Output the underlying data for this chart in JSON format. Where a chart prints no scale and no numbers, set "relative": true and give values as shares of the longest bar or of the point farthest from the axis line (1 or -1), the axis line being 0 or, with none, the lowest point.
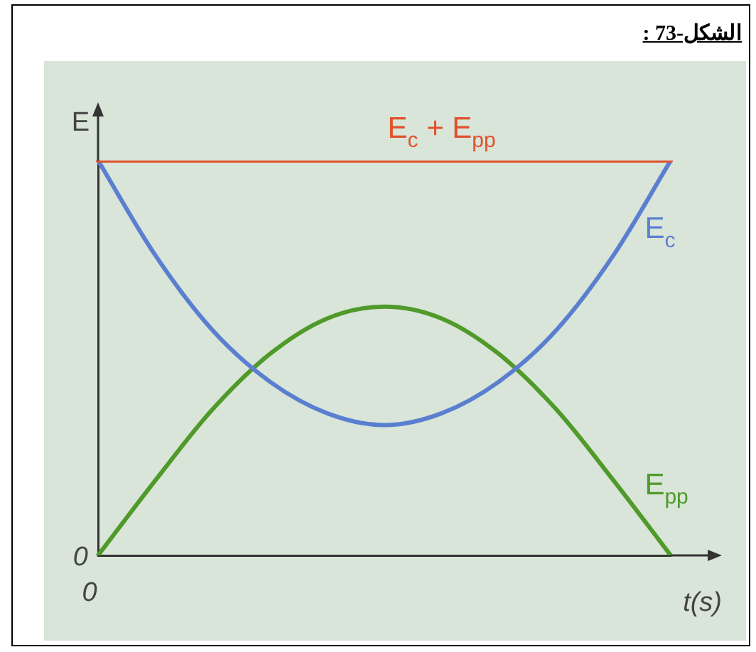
{
  "chart_data": {
    "type": "line",
    "title": "الشكل-73 :",
    "xlabel": "t(s)",
    "ylabel": "E",
    "relative": true,
    "legend": false,
    "grid": false,
    "marker": "none",
    "line_style": "solid",
    "annotations": [
      "0",
      "0"
    ],
    "categories": [
      null,
      null,
      null,
      null,
      null,
      null,
      null,
      null,
      null,
      null,
      null
    ],
    "series": [
      {
        "name": "E$_{c}$ + E$_{pp}$",
        "color": "#e0522e",
        "values": [
          1,
          1,
          1,
          1,
          1,
          1,
          1,
          1,
          1,
          1,
          1
        ]
      },
      {
        "name": "E$_{c}$",
        "color": "#5b7fd0",
        "values": [
          1,
          0.76,
          0.57,
          0.44,
          0.36,
          0.33,
          0.36,
          0.44,
          0.57,
          0.76,
          1
        ]
      },
      {
        "name": "E$_{pp}$",
        "color": "#4f9a2a",
        "values": [
          0,
          0.19,
          0.37,
          0.51,
          0.6,
          0.63,
          0.6,
          0.51,
          0.37,
          0.19,
          0
        ]
      }
    ]
  }
}
